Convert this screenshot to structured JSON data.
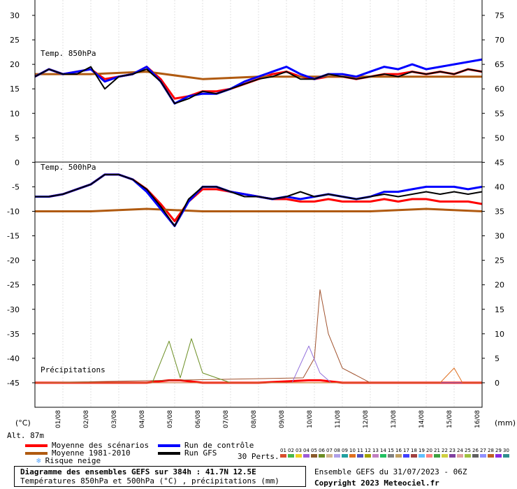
{
  "chart_data": {
    "type": "line",
    "title": "Diagramme des ensembles GEFS sur 384h : 41.7N 12.5E",
    "subtitle": "Températures 850hPa et 500hPa (°C) , précipitations (mm)",
    "run_info": "Ensemble GEFS du 31/07/2023 - 06Z",
    "copyright": "Copyright 2023 Meteociel.fr",
    "altitude": "Alt. 87m",
    "unit_left": "(°C)",
    "unit_right": "(mm)",
    "x_ticks": [
      "01/08",
      "02/08",
      "03/08",
      "04/08",
      "05/08",
      "06/08",
      "07/08",
      "08/08",
      "09/08",
      "10/08",
      "11/08",
      "12/08",
      "13/08",
      "14/08",
      "15/08",
      "16/08"
    ],
    "left_ticks": [
      30,
      25,
      20,
      15,
      10,
      5,
      0,
      -5,
      -10,
      -15,
      -20,
      -25,
      -30,
      -35,
      -40,
      -45
    ],
    "right_ticks": [
      75,
      70,
      65,
      60,
      55,
      50,
      45,
      40,
      35,
      30,
      25,
      20,
      15,
      10,
      5,
      0
    ],
    "panels": [
      {
        "name": "Temp. 850hPa",
        "ylim": [
          0,
          30
        ],
        "series": [
          {
            "name": "Moyenne des scénarios",
            "color": "#ff0000",
            "x": [
              0,
              0.5,
              1,
              1.5,
              2,
              2.5,
              3,
              3.5,
              4,
              4.5,
              5,
              5.5,
              6,
              6.5,
              7,
              7.5,
              8,
              8.5,
              9,
              9.5,
              10,
              10.5,
              11,
              11.5,
              12,
              12.5,
              13,
              13.5,
              14,
              14.5,
              15,
              15.5,
              16
            ],
            "values": [
              17.5,
              19,
              18,
              18.5,
              19,
              17,
              17.5,
              18,
              19.5,
              17,
              13,
              13.5,
              14.5,
              14.5,
              15,
              16,
              17,
              18,
              18.5,
              17.5,
              17,
              17.5,
              17.5,
              17,
              17.5,
              18,
              18,
              18.5,
              18,
              18.5,
              18,
              19,
              18.5
            ]
          },
          {
            "name": "Moyenne 1981-2010",
            "color": "#b05a10",
            "x": [
              0,
              2,
              4,
              6,
              8,
              10,
              12,
              14,
              16
            ],
            "values": [
              18,
              18,
              18.5,
              17,
              17.5,
              17.5,
              17.5,
              17.5,
              17.5
            ]
          },
          {
            "name": "Run de contrôle",
            "color": "#0000ff",
            "x": [
              0,
              0.5,
              1,
              1.5,
              2,
              2.5,
              3,
              3.5,
              4,
              4.5,
              5,
              5.5,
              6,
              6.5,
              7,
              7.5,
              8,
              8.5,
              9,
              9.5,
              10,
              10.5,
              11,
              11.5,
              12,
              12.5,
              13,
              13.5,
              14,
              14.5,
              15,
              15.5,
              16
            ],
            "values": [
              17.5,
              19,
              18,
              18.5,
              19,
              16.5,
              17.5,
              18,
              19.5,
              16.5,
              12,
              13.5,
              14,
              14,
              15,
              16.5,
              17.5,
              18.5,
              19.5,
              18,
              17,
              18,
              18,
              17.5,
              18.5,
              19.5,
              19,
              20,
              19,
              19.5,
              20,
              20.5,
              21
            ]
          },
          {
            "name": "Run GFS",
            "color": "#000000",
            "x": [
              0,
              0.5,
              1,
              1.5,
              2,
              2.5,
              3,
              3.5,
              4,
              4.5,
              5,
              5.5,
              6,
              6.5,
              7,
              7.5,
              8,
              8.5,
              9,
              9.5,
              10,
              10.5,
              11,
              11.5,
              12,
              12.5,
              13,
              13.5,
              14,
              14.5,
              15,
              15.5,
              16
            ],
            "values": [
              17.5,
              19,
              18,
              18,
              19.5,
              15,
              17.5,
              18,
              19,
              16.5,
              12,
              13,
              14.5,
              14,
              15,
              16,
              17,
              17.5,
              18.5,
              17,
              17,
              18,
              17.5,
              17,
              17.5,
              18,
              17.5,
              18.5,
              18,
              18.5,
              18,
              19,
              18.5
            ]
          }
        ]
      },
      {
        "name": "Temp. 500hPa",
        "ylim": [
          -20,
          0
        ],
        "series": [
          {
            "name": "Moyenne des scénarios",
            "color": "#ff0000",
            "x": [
              0,
              0.5,
              1,
              1.5,
              2,
              2.5,
              3,
              3.5,
              4,
              4.5,
              5,
              5.5,
              6,
              6.5,
              7,
              7.5,
              8,
              8.5,
              9,
              9.5,
              10,
              10.5,
              11,
              11.5,
              12,
              12.5,
              13,
              13.5,
              14,
              14.5,
              15,
              15.5,
              16
            ],
            "values": [
              -7,
              -7,
              -6.5,
              -5.5,
              -4.5,
              -2.5,
              -2.5,
              -3.5,
              -5.5,
              -8.5,
              -12,
              -8,
              -5.5,
              -5.5,
              -6,
              -6.5,
              -7,
              -7.5,
              -7.5,
              -8,
              -8,
              -7.5,
              -8,
              -8,
              -8,
              -7.5,
              -8,
              -7.5,
              -7.5,
              -8,
              -8,
              -8,
              -8.5
            ]
          },
          {
            "name": "Moyenne 1981-2010",
            "color": "#b05a10",
            "x": [
              0,
              2,
              4,
              6,
              8,
              10,
              12,
              14,
              16
            ],
            "values": [
              -10,
              -10,
              -9.5,
              -10,
              -10,
              -10,
              -10,
              -9.5,
              -10
            ]
          },
          {
            "name": "Run de contrôle",
            "color": "#0000ff",
            "x": [
              0,
              0.5,
              1,
              1.5,
              2,
              2.5,
              3,
              3.5,
              4,
              4.5,
              5,
              5.5,
              6,
              6.5,
              7,
              7.5,
              8,
              8.5,
              9,
              9.5,
              10,
              10.5,
              11,
              11.5,
              12,
              12.5,
              13,
              13.5,
              14,
              14.5,
              15,
              15.5,
              16
            ],
            "values": [
              -7,
              -7,
              -6.5,
              -5.5,
              -4.5,
              -2.5,
              -2.5,
              -3.5,
              -6,
              -9.5,
              -13,
              -8,
              -5,
              -5,
              -6,
              -6.5,
              -7,
              -7.5,
              -7,
              -7.5,
              -7,
              -6.5,
              -7,
              -7.5,
              -7,
              -6,
              -6,
              -5.5,
              -5,
              -5,
              -5,
              -5.5,
              -5
            ]
          },
          {
            "name": "Run GFS",
            "color": "#000000",
            "x": [
              0,
              0.5,
              1,
              1.5,
              2,
              2.5,
              3,
              3.5,
              4,
              4.5,
              5,
              5.5,
              6,
              6.5,
              7,
              7.5,
              8,
              8.5,
              9,
              9.5,
              10,
              10.5,
              11,
              11.5,
              12,
              12.5,
              13,
              13.5,
              14,
              14.5,
              15,
              15.5,
              16
            ],
            "values": [
              -7,
              -7,
              -6.5,
              -5.5,
              -4.5,
              -2.5,
              -2.5,
              -3.5,
              -5.5,
              -9,
              -13,
              -7.5,
              -5,
              -5,
              -6,
              -7,
              -7,
              -7.5,
              -7,
              -6,
              -7,
              -6.5,
              -7,
              -7.5,
              -7,
              -6.5,
              -7,
              -6.5,
              -6,
              -6.5,
              -6,
              -6.5,
              -6
            ]
          }
        ]
      },
      {
        "name": "Précipitations",
        "ylim": [
          0,
          45
        ],
        "series": [
          {
            "name": "Moyenne des scénarios",
            "color": "#ff0000",
            "x": [
              0,
              2,
              4,
              4.8,
              5.2,
              6,
              8,
              9.8,
              10.2,
              11,
              12,
              14,
              16
            ],
            "values": [
              0,
              0,
              0,
              0.5,
              0.5,
              0,
              0,
              0.5,
              0.5,
              0,
              0,
              0,
              0
            ]
          },
          {
            "name": "Pert-brown",
            "color": "#a0522d",
            "x": [
              0,
              9.6,
              10,
              10.2,
              10.5,
              11,
              12,
              16
            ],
            "values": [
              0,
              1,
              5,
              19,
              10,
              3,
              0,
              0
            ]
          },
          {
            "name": "Pert-green",
            "color": "#6b8e23",
            "x": [
              0,
              4.2,
              4.8,
              5.2,
              5.6,
              6,
              7,
              16
            ],
            "values": [
              0,
              0,
              8.5,
              1,
              9,
              2,
              0,
              0
            ]
          },
          {
            "name": "Pert-violet",
            "color": "#9370db",
            "x": [
              0,
              9.2,
              9.8,
              10.2,
              10.6,
              16
            ],
            "values": [
              0,
              0,
              7.5,
              2,
              0,
              0
            ]
          },
          {
            "name": "Pert-orange",
            "color": "#e07020",
            "x": [
              0,
              14.5,
              15,
              15.3,
              16
            ],
            "values": [
              0,
              0,
              3,
              0,
              0
            ]
          }
        ]
      }
    ],
    "legend": [
      {
        "label": "Moyenne des scénarios",
        "color": "#ff0000"
      },
      {
        "label": "Moyenne 1981-2010",
        "color": "#b05a10"
      },
      {
        "label": "Run de contrôle",
        "color": "#0000ff"
      },
      {
        "label": "Run GFS",
        "color": "#000000"
      },
      {
        "label": "Risque neige",
        "color": "#59a9ff"
      }
    ],
    "perts_label": "30 Perts.",
    "perturbations": [
      {
        "id": "01",
        "color": "#d94e2c"
      },
      {
        "id": "02",
        "color": "#48b848"
      },
      {
        "id": "03",
        "color": "#f0d020"
      },
      {
        "id": "04",
        "color": "#9d5cd6"
      },
      {
        "id": "05",
        "color": "#8a5a2b"
      },
      {
        "id": "06",
        "color": "#6b8e23"
      },
      {
        "id": "07",
        "color": "#d2b48c"
      },
      {
        "id": "08",
        "color": "#b0a0e8"
      },
      {
        "id": "09",
        "color": "#20a0a0"
      },
      {
        "id": "10",
        "color": "#e07020"
      },
      {
        "id": "11",
        "color": "#5050c0"
      },
      {
        "id": "12",
        "color": "#a0a000"
      },
      {
        "id": "13",
        "color": "#c080c0"
      },
      {
        "id": "14",
        "color": "#20c060"
      },
      {
        "id": "15",
        "color": "#808080"
      },
      {
        "id": "16",
        "color": "#c0a060"
      },
      {
        "id": "17",
        "color": "#4040ff"
      },
      {
        "id": "18",
        "color": "#a04040"
      },
      {
        "id": "19",
        "color": "#60c0ff"
      },
      {
        "id": "20",
        "color": "#ff8080"
      },
      {
        "id": "21",
        "color": "#40a040"
      },
      {
        "id": "22",
        "color": "#d0d040"
      },
      {
        "id": "23",
        "color": "#8040a0"
      },
      {
        "id": "24",
        "color": "#e0a0a0"
      },
      {
        "id": "25",
        "color": "#a0c040"
      },
      {
        "id": "26",
        "color": "#606060"
      },
      {
        "id": "27",
        "color": "#9090ff"
      },
      {
        "id": "28",
        "color": "#c06020"
      },
      {
        "id": "29",
        "color": "#8a2be2"
      },
      {
        "id": "30",
        "color": "#2f8f8f"
      }
    ]
  }
}
